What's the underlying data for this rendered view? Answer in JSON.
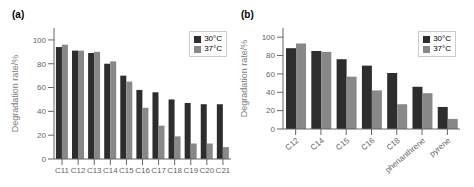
{
  "chart_data": [
    {
      "type": "bar",
      "title": "(a)",
      "ylabel": "Degradation rate/%",
      "categories": [
        "C11",
        "C12",
        "C13",
        "C14",
        "C15",
        "C16",
        "C17",
        "C18",
        "C19",
        "C20",
        "C21"
      ],
      "series": [
        {
          "name": "30°C",
          "color": "#2d2d2d",
          "values": [
            94,
            91,
            89,
            80,
            70,
            58,
            56,
            50,
            47,
            46,
            46
          ]
        },
        {
          "name": "37°C",
          "color": "#888888",
          "values": [
            96,
            91,
            90,
            82,
            65,
            43,
            28,
            19,
            13,
            13,
            10
          ]
        }
      ],
      "ylim": [
        0,
        110
      ],
      "yticks": [
        0,
        20,
        40,
        60,
        80,
        100
      ],
      "grid": false,
      "legend": "upper right"
    },
    {
      "type": "bar",
      "title": "(b)",
      "ylabel": "Degradation rate/%",
      "categories": [
        "C12",
        "C14",
        "C15",
        "C16",
        "C18",
        "phenanthrene",
        "pyrene"
      ],
      "series": [
        {
          "name": "30°C",
          "color": "#2d2d2d",
          "values": [
            88,
            85,
            76,
            69,
            61,
            46,
            24
          ]
        },
        {
          "name": "37°C",
          "color": "#888888",
          "values": [
            93,
            84,
            57,
            42,
            27,
            39,
            11
          ]
        }
      ],
      "ylim": [
        0,
        110
      ],
      "yticks": [
        0,
        20,
        40,
        60,
        80,
        100
      ],
      "grid": false,
      "legend": "upper right"
    }
  ]
}
